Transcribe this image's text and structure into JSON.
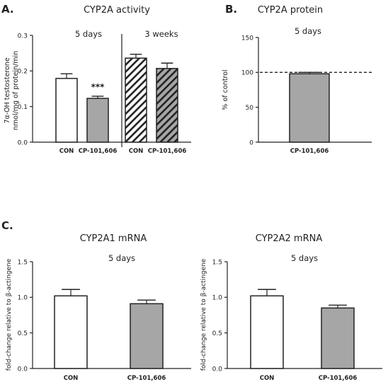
{
  "chart_data": [
    {
      "panel_label": "A.",
      "title": "CYP2A activity",
      "type": "bar",
      "ylabel_lines": [
        "7α-OH testosterone",
        "nmol/mg of protein/min"
      ],
      "ylim": [
        0,
        0.3
      ],
      "yticks": [
        "0.0",
        "0.1",
        "0.2",
        "0.3"
      ],
      "groups": [
        {
          "subtitle": "5 days",
          "categories": [
            "CON",
            "CP-101,606"
          ],
          "values": [
            0.179,
            0.123
          ],
          "errors": [
            0.013,
            0.006
          ],
          "fills": [
            "open",
            "gray"
          ],
          "annotations": [
            "",
            "***"
          ]
        },
        {
          "subtitle": "3 weeks",
          "categories": [
            "CON",
            "CP-101,606"
          ],
          "values": [
            0.236,
            0.207
          ],
          "errors": [
            0.011,
            0.015
          ],
          "fills": [
            "hatch-light",
            "hatch-dark"
          ],
          "annotations": [
            "",
            ""
          ]
        }
      ]
    },
    {
      "panel_label": "B.",
      "title": "CYP2A protein",
      "subtitle": "5 days",
      "type": "bar",
      "ylabel": "% of control",
      "ylim": [
        0,
        150
      ],
      "yticks": [
        "0",
        "50",
        "100",
        "150"
      ],
      "reference_line": 100,
      "categories": [
        "CP-101,606"
      ],
      "values": [
        98
      ],
      "errors": [
        2
      ],
      "fills": [
        "gray"
      ]
    },
    {
      "panel_label": "C.",
      "title": "CYP2A1 mRNA",
      "subtitle": "5 days",
      "type": "bar",
      "ylabel": "fold-change relative to β-actingene",
      "ylim": [
        0,
        1.5
      ],
      "yticks": [
        "0.0",
        "0.5",
        "1.0",
        "1.5"
      ],
      "categories": [
        "CON",
        "CP-101,606"
      ],
      "values": [
        1.02,
        0.91
      ],
      "errors": [
        0.09,
        0.05
      ],
      "fills": [
        "open",
        "gray"
      ]
    },
    {
      "title": "CYP2A2 mRNA",
      "subtitle": "5 days",
      "type": "bar",
      "ylabel": "fold-change relative to β-actingene",
      "ylim": [
        0,
        1.5
      ],
      "yticks": [
        "0.0",
        "0.5",
        "1.0",
        "1.5"
      ],
      "categories": [
        "CON",
        "CP-101,606"
      ],
      "values": [
        1.02,
        0.85
      ],
      "errors": [
        0.09,
        0.04
      ],
      "fills": [
        "open",
        "gray"
      ]
    }
  ]
}
